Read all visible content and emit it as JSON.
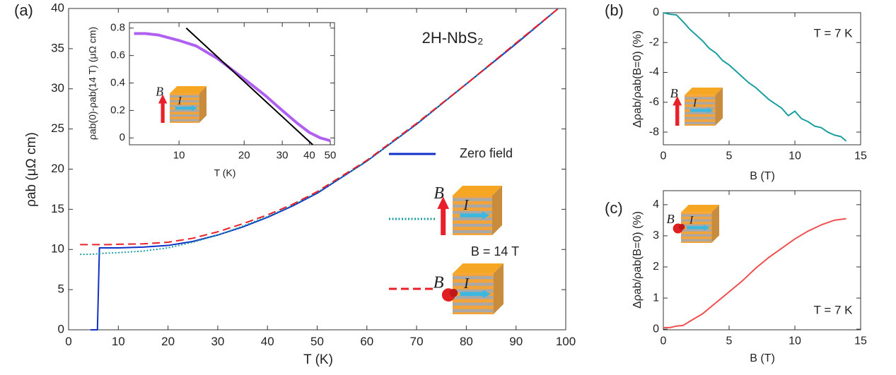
{
  "chart_data": [
    {
      "type": "line",
      "panel_label": "(a)",
      "xlabel": "T (K)",
      "ylabel": "ρab (μΩ cm)",
      "annotations": [
        "2H-NbS₂",
        "B = 14 T"
      ],
      "x": [
        2.3,
        4.4,
        5.8,
        6.2,
        8,
        10,
        15,
        20,
        25,
        30,
        35,
        40,
        45,
        50,
        60,
        70,
        80,
        90,
        98.5
      ],
      "series": [
        {
          "name": "Zero field",
          "color": "#1030c8",
          "dash": "solid",
          "values": [
            null,
            0,
            0,
            10.2,
            10.2,
            10.2,
            10.3,
            10.5,
            11,
            11.8,
            12.8,
            14,
            15.4,
            17,
            21,
            25.6,
            30.6,
            35.6,
            40
          ]
        },
        {
          "color": "#1a9e9e",
          "dash": "dotted",
          "values": [
            9.4,
            9.4,
            9.45,
            9.5,
            9.55,
            9.6,
            9.8,
            10.2,
            10.9,
            11.8,
            12.9,
            14.1,
            15.5,
            17.1,
            21,
            25.6,
            30.6,
            35.7,
            40
          ]
        },
        {
          "color": "#e8202a",
          "dash": "dashed",
          "values": [
            10.6,
            10.6,
            10.6,
            10.6,
            10.6,
            10.65,
            10.7,
            10.9,
            11.4,
            12.2,
            13.2,
            14.3,
            15.6,
            17.2,
            21.1,
            25.7,
            30.6,
            35.7,
            40
          ]
        }
      ],
      "icons": [
        {
          "field": "B",
          "current": "I"
        },
        {
          "field": "B",
          "current": "I"
        }
      ],
      "xlim": [
        0,
        100
      ],
      "xticks": [
        0,
        10,
        20,
        30,
        40,
        50,
        60,
        70,
        80,
        90,
        100
      ],
      "ylim": [
        0,
        40
      ],
      "yticks": [
        0,
        5,
        10,
        15,
        20,
        25,
        30,
        35,
        40
      ]
    },
    {
      "type": "line",
      "xlabel": "T (K)",
      "ylabel": "ρab(0)-ρab(14 T) (μΩ cm)",
      "xscale": "log",
      "x": [
        6.2,
        7,
        8,
        10,
        12,
        15,
        20,
        25,
        30,
        35,
        40,
        45,
        50
      ],
      "series": [
        {
          "color": "#b060f0",
          "dash": "solid",
          "width": 4,
          "values": [
            0.76,
            0.76,
            0.75,
            0.71,
            0.67,
            0.58,
            0.43,
            0.31,
            0.2,
            0.11,
            0.04,
            0.0,
            -0.02
          ]
        },
        {
          "color": "#000000",
          "dash": "solid",
          "x": [
            10.8,
            41.5
          ],
          "values": [
            0.8,
            -0.05
          ]
        }
      ],
      "icons": [
        {
          "field": "B",
          "current": "I"
        }
      ],
      "xlim": [
        5.9,
        52.3
      ],
      "xticks": [
        10,
        20,
        30,
        40,
        50
      ],
      "ylim": [
        -0.05,
        0.84
      ],
      "yticks": [
        0,
        0.2,
        0.4,
        0.6,
        0.8
      ]
    },
    {
      "type": "line",
      "panel_label": "(b)",
      "xlabel": "B (T)",
      "ylabel": "Δρab/ρab(B=0) (%)",
      "annotations": [
        "T = 7 K"
      ],
      "x": [
        0,
        0.5,
        1,
        1.5,
        2,
        2.5,
        3,
        3.5,
        4,
        4.5,
        5,
        5.5,
        6,
        6.5,
        7,
        7.5,
        8,
        8.5,
        9,
        9.5,
        10,
        10.5,
        11,
        11.5,
        12,
        12.5,
        13,
        13.5,
        13.9
      ],
      "series": [
        {
          "color": "#1a9e9e",
          "dash": "solid",
          "values": [
            0,
            -0.1,
            -0.15,
            -0.6,
            -1.1,
            -1.5,
            -1.9,
            -2.4,
            -2.7,
            -3.2,
            -3.5,
            -3.9,
            -4.3,
            -4.7,
            -5.0,
            -5.4,
            -5.8,
            -6.1,
            -6.4,
            -6.9,
            -6.6,
            -7.1,
            -7.3,
            -7.6,
            -7.7,
            -8.0,
            -8.2,
            -8.3,
            -8.6
          ]
        }
      ],
      "icons": [
        {
          "field": "B",
          "current": "I"
        }
      ],
      "xlim": [
        0,
        15
      ],
      "xticks": [
        0,
        5,
        10,
        15
      ],
      "ylim": [
        -8.85,
        0
      ],
      "yticks": [
        -8,
        -6,
        -4,
        -2,
        0
      ]
    },
    {
      "type": "line",
      "panel_label": "(c)",
      "xlabel": "B (T)",
      "ylabel": "Δρab/ρab(B=0) (%)",
      "annotations": [
        "T = 7 K"
      ],
      "x": [
        0,
        0.5,
        1,
        1.5,
        2,
        3,
        4,
        5,
        6,
        7,
        8,
        9,
        10,
        11,
        12,
        13,
        13.9
      ],
      "series": [
        {
          "color": "#f05050",
          "dash": "solid",
          "values": [
            0.05,
            0.05,
            0.1,
            0.12,
            0.25,
            0.5,
            0.85,
            1.2,
            1.55,
            1.95,
            2.3,
            2.6,
            2.9,
            3.15,
            3.35,
            3.5,
            3.55
          ]
        }
      ],
      "icons": [
        {
          "field": "B",
          "current": "I"
        }
      ],
      "xlim": [
        0,
        15
      ],
      "xticks": [
        0,
        5,
        10,
        15
      ],
      "ylim": [
        -0.02,
        4.45
      ],
      "yticks": [
        0,
        1,
        2,
        3,
        4
      ]
    }
  ]
}
